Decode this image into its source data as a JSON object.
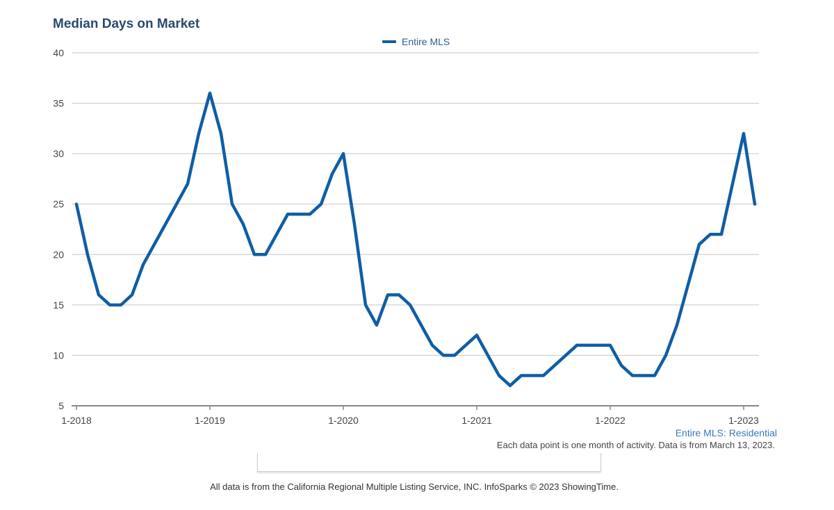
{
  "title": "Median Days on Market",
  "legend": {
    "label": "Entire MLS"
  },
  "footer": {
    "series_label": "Entire MLS: Residential",
    "note": "Each data point is one month of activity. Data is from March 13, 2023.",
    "copyright": "All data is from the California Regional Multiple Listing Service, INC. InfoSparks © 2023 ShowingTime."
  },
  "colors": {
    "series": "#0f5ea5",
    "title": "#2a4a6e",
    "grid": "#c7c7c7",
    "axis": "#888888"
  },
  "chart_data": {
    "type": "line",
    "title": "Median Days on Market",
    "xlabel": "",
    "ylabel": "",
    "ylim": [
      5,
      40
    ],
    "yticks": [
      5,
      10,
      15,
      20,
      25,
      30,
      35,
      40
    ],
    "xticks": [
      "1-2018",
      "1-2019",
      "1-2020",
      "1-2021",
      "1-2022",
      "1-2023"
    ],
    "grid": true,
    "legend_position": "top-center",
    "x_start": "2018-01",
    "x_end": "2023-02",
    "series": [
      {
        "name": "Entire MLS",
        "values": [
          25,
          20,
          16,
          15,
          15,
          16,
          19,
          21,
          23,
          25,
          27,
          32,
          36,
          32,
          25,
          23,
          20,
          20,
          22,
          24,
          24,
          24,
          25,
          28,
          30,
          23,
          15,
          13,
          16,
          16,
          15,
          13,
          11,
          10,
          10,
          11,
          12,
          10,
          8,
          7,
          8,
          8,
          8,
          9,
          10,
          11,
          11,
          11,
          11,
          9,
          8,
          8,
          8,
          10,
          13,
          17,
          21,
          22,
          22,
          27,
          32,
          25
        ]
      }
    ]
  }
}
